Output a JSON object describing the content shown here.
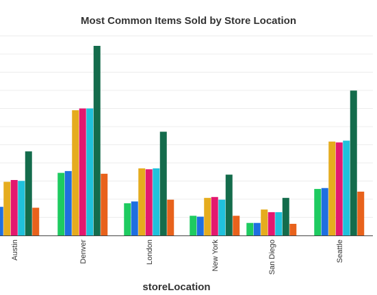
{
  "chart_data": {
    "type": "bar",
    "title": "Most Common Items Sold by Store Location",
    "xlabel": "storeLocation",
    "ylabel": "",
    "categories": [
      "Austin",
      "Denver",
      "London",
      "New York",
      "San Diego",
      "Seattle"
    ],
    "ylim": [
      0,
      106
    ],
    "grid": true,
    "series": [
      {
        "values": [
          16,
          35,
          18,
          11,
          7,
          26
        ],
        "color": "#f2a9a9"
      },
      {
        "values": [
          16,
          36,
          19,
          10.5,
          7,
          26.5
        ],
        "color": "#1f6fe0"
      },
      {
        "values": [
          30,
          70,
          37.5,
          21,
          14.5,
          52.5
        ],
        "color": "#e5ac1e"
      },
      {
        "values": [
          31,
          71,
          37,
          21.5,
          13,
          52
        ],
        "color": "#e3186f"
      },
      {
        "values": [
          30.5,
          71,
          37.5,
          20,
          13,
          53
        ],
        "color": "#20c1dc"
      },
      {
        "values": [
          47,
          106,
          58,
          34,
          21,
          81
        ],
        "color": "#146c4c"
      },
      {
        "values": [
          15.5,
          34.5,
          20,
          11,
          6.5,
          24.5
        ],
        "color": "#e8621c"
      }
    ],
    "first_series_colors": [
      "#f2a9a9",
      "#1ecb60",
      "#1ecb60",
      "#1ecb60",
      "#1ecb60",
      "#1ecb60"
    ]
  }
}
